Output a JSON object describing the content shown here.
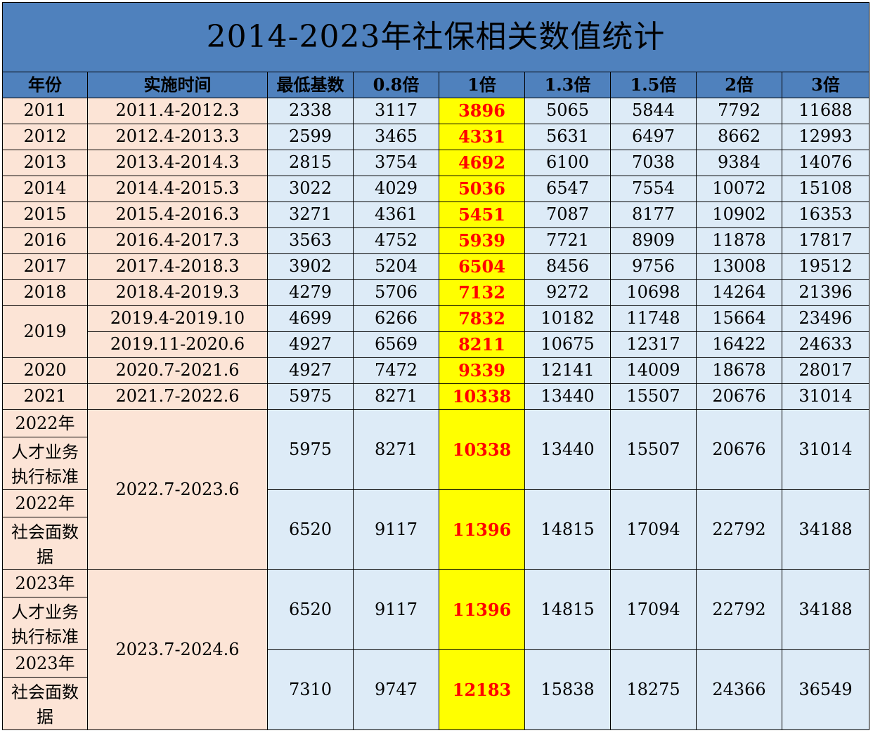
{
  "title": "2014-2023年社保相关数值统计",
  "headers": [
    "年份",
    "实施时间",
    "最低基数",
    "0.8倍",
    "1倍",
    "1.3倍",
    "1.5倍",
    "2倍",
    "3倍"
  ],
  "rows": [
    {
      "year": "2011",
      "period": "2011.4-2012.3",
      "values": [
        "2338",
        "3117",
        "3896",
        "5065",
        "5844",
        "7792",
        "11688"
      ]
    },
    {
      "year": "2012",
      "period": "2012.4-2013.3",
      "values": [
        "2599",
        "3465",
        "4331",
        "5631",
        "6497",
        "8662",
        "12993"
      ]
    },
    {
      "year": "2013",
      "period": "2013.4-2014.3",
      "values": [
        "2815",
        "3754",
        "4692",
        "6100",
        "7038",
        "9384",
        "14076"
      ]
    },
    {
      "year": "2014",
      "period": "2014.4-2015.3",
      "values": [
        "3022",
        "4029",
        "5036",
        "6547",
        "7554",
        "10072",
        "15108"
      ]
    },
    {
      "year": "2015",
      "period": "2015.4-2016.3",
      "values": [
        "3271",
        "4361",
        "5451",
        "7087",
        "8177",
        "10902",
        "16353"
      ]
    },
    {
      "year": "2016",
      "period": "2016.4-2017.3",
      "values": [
        "3563",
        "4752",
        "5939",
        "7721",
        "8909",
        "11878",
        "17817"
      ]
    },
    {
      "year": "2017",
      "period": "2017.4-2018.3",
      "values": [
        "3902",
        "5204",
        "6504",
        "8456",
        "9756",
        "13008",
        "19512"
      ]
    },
    {
      "year": "2018",
      "period": "2018.4-2019.3",
      "values": [
        "4279",
        "5706",
        "7132",
        "9272",
        "10698",
        "14264",
        "21396"
      ]
    }
  ],
  "row2019": {
    "year": "2019",
    "a": {
      "period": "2019.4-2019.10",
      "values": [
        "4699",
        "6266",
        "7832",
        "10182",
        "11748",
        "15664",
        "23496"
      ]
    },
    "b": {
      "period": "2019.11-2020.6",
      "values": [
        "4927",
        "6569",
        "8211",
        "10675",
        "12317",
        "16422",
        "24633"
      ]
    }
  },
  "rows2": [
    {
      "year": "2020",
      "period": "2020.7-2021.6",
      "values": [
        "4927",
        "7472",
        "9339",
        "12141",
        "14009",
        "18678",
        "28017"
      ]
    },
    {
      "year": "2021",
      "period": "2021.7-2022.6",
      "values": [
        "5975",
        "8271",
        "10338",
        "13440",
        "15507",
        "20676",
        "31014"
      ]
    }
  ],
  "groups": [
    {
      "period": "2022.7-2023.6",
      "sub": [
        {
          "year": "2022年",
          "label": "人才业务执行标准",
          "values": [
            "5975",
            "8271",
            "10338",
            "13440",
            "15507",
            "20676",
            "31014"
          ]
        },
        {
          "year": "2022年",
          "label": "社会面数据",
          "values": [
            "6520",
            "9117",
            "11396",
            "14815",
            "17094",
            "22792",
            "34188"
          ]
        }
      ]
    },
    {
      "period": "2023.7-2024.6",
      "sub": [
        {
          "year": "2023年",
          "label": "人才业务执行标准",
          "values": [
            "6520",
            "9117",
            "11396",
            "14815",
            "17094",
            "22792",
            "34188"
          ]
        },
        {
          "year": "2023年",
          "label": "社会面数据",
          "values": [
            "7310",
            "9747",
            "12183",
            "15838",
            "18275",
            "24366",
            "36549"
          ]
        }
      ]
    }
  ],
  "colors": {
    "header": "#4f81bd",
    "peach": "#fce4d6",
    "blue": "#ddebf7",
    "highlight": "#ffff00",
    "highlight_text": "#ff0000"
  }
}
